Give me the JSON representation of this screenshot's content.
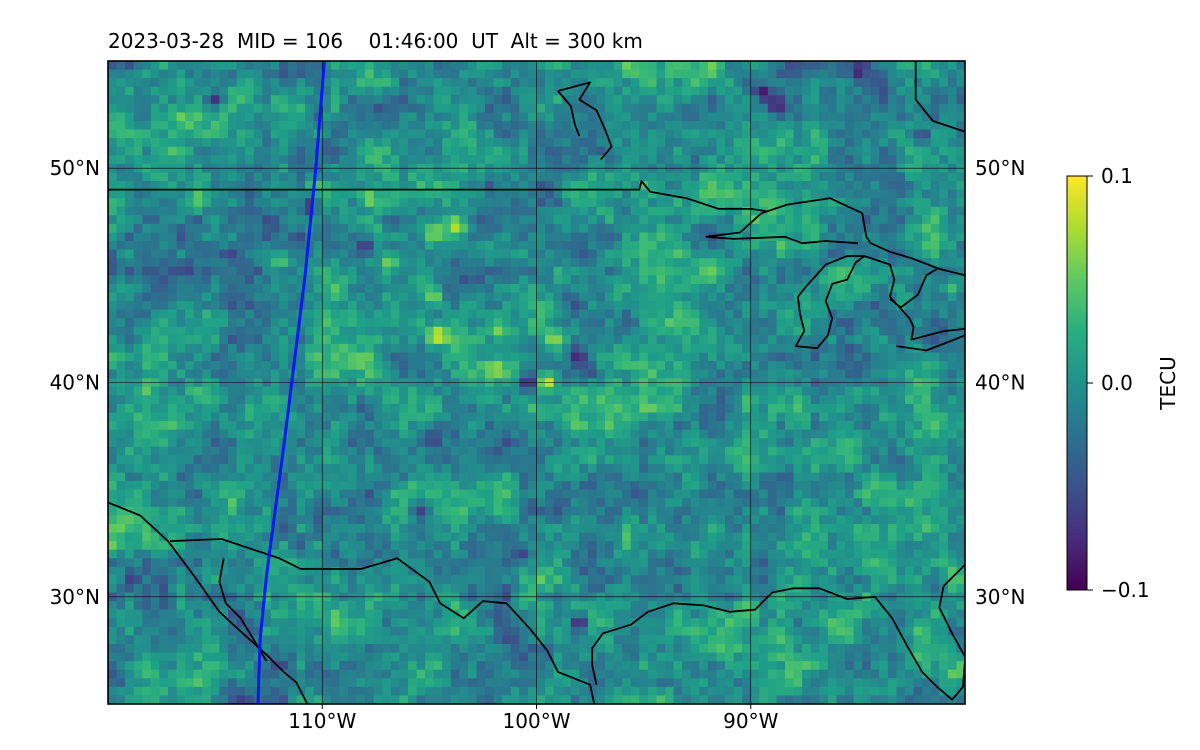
{
  "chart_data": {
    "type": "heatmap",
    "title": "2023-03-28  MID = 106    01:46:00  UT  Alt = 300 km",
    "projection": "equirectangular",
    "lon_range": [
      -120,
      -80
    ],
    "lat_range": [
      25,
      55
    ],
    "xticks": [
      {
        "value": -110,
        "label": "110°W"
      },
      {
        "value": -100,
        "label": "100°W"
      },
      {
        "value": -90,
        "label": "90°W"
      }
    ],
    "yticks": [
      {
        "value": 50,
        "label": "50°N"
      },
      {
        "value": 40,
        "label": "40°N"
      },
      {
        "value": 30,
        "label": "30°N"
      }
    ],
    "grid": true,
    "colormap": "viridis",
    "colorbar": {
      "label": "TECU",
      "vmin": -0.1,
      "vmax": 0.1,
      "ticks": [
        {
          "value": 0.1,
          "label": "0.1"
        },
        {
          "value": 0.0,
          "label": "0.0"
        },
        {
          "value": -0.1,
          "label": "−0.1"
        }
      ]
    },
    "colors": {
      "track": "#0a19f0",
      "coastline": "#000000",
      "grid": "#000000"
    },
    "satellite_track": {
      "lon": [
        -113.0,
        -112.9,
        -112.6,
        -112.2,
        -111.8,
        -111.3,
        -110.8,
        -110.3,
        -109.9
      ],
      "lat": [
        25.0,
        28.0,
        31.0,
        34.0,
        37.0,
        41.0,
        45.0,
        50.0,
        55.0
      ]
    },
    "hotspots": [
      {
        "lon": -99.6,
        "lat": 40.0,
        "value": 0.1
      },
      {
        "lon": -99.2,
        "lat": 42.0,
        "value": 0.07
      },
      {
        "lon": -104.8,
        "lat": 47.0,
        "value": 0.07
      },
      {
        "lon": -107.8,
        "lat": 48.6,
        "value": 0.07
      },
      {
        "lon": -106.9,
        "lat": 45.6,
        "value": 0.06
      },
      {
        "lon": -103.8,
        "lat": 47.3,
        "value": 0.08
      },
      {
        "lon": -101.8,
        "lat": 42.4,
        "value": 0.06
      },
      {
        "lon": -104.8,
        "lat": 44.0,
        "value": 0.06
      },
      {
        "lon": -102.0,
        "lat": 40.6,
        "value": 0.07
      },
      {
        "lon": -104.6,
        "lat": 42.2,
        "value": 0.09
      },
      {
        "lon": -112.0,
        "lat": 45.6,
        "value": 0.05
      },
      {
        "lon": -89.0,
        "lat": 48.5,
        "value": 0.04
      },
      {
        "lon": -98.9,
        "lat": 45.0,
        "value": 0.04
      }
    ],
    "coldspots": [
      {
        "lon": -88.8,
        "lat": 53.0,
        "value": -0.1
      },
      {
        "lon": -89.5,
        "lat": 53.6,
        "value": -0.09
      },
      {
        "lon": -85.0,
        "lat": 54.5,
        "value": -0.08
      },
      {
        "lon": -110.6,
        "lat": 48.2,
        "value": -0.08
      },
      {
        "lon": -108.0,
        "lat": 46.3,
        "value": -0.08
      },
      {
        "lon": -100.4,
        "lat": 40.0,
        "value": -0.08
      },
      {
        "lon": -98.1,
        "lat": 41.2,
        "value": -0.08
      },
      {
        "lon": -98.0,
        "lat": 28.8,
        "value": -0.08
      },
      {
        "lon": -115.0,
        "lat": 53.2,
        "value": -0.07
      },
      {
        "lon": -104.8,
        "lat": 37.4,
        "value": -0.07
      },
      {
        "lon": -105.4,
        "lat": 34.0,
        "value": -0.06
      },
      {
        "lon": -100.7,
        "lat": 32.0,
        "value": -0.06
      },
      {
        "lon": -82.0,
        "lat": 51.5,
        "value": -0.06
      }
    ],
    "coastlines": [
      [
        [
          -120.0,
          34.4
        ],
        [
          -118.5,
          33.8
        ],
        [
          -117.2,
          32.6
        ],
        [
          -116.0,
          31.0
        ],
        [
          -114.8,
          29.3
        ],
        [
          -113.6,
          28.2
        ],
        [
          -112.6,
          27.3
        ],
        [
          -111.8,
          26.5
        ],
        [
          -111.2,
          26.0
        ],
        [
          -110.7,
          25.0
        ]
      ],
      [
        [
          -117.1,
          32.6
        ],
        [
          -114.7,
          32.7
        ],
        [
          -112.0,
          31.8
        ],
        [
          -111.0,
          31.3
        ],
        [
          -108.2,
          31.3
        ],
        [
          -106.5,
          31.8
        ],
        [
          -105.0,
          30.7
        ],
        [
          -104.5,
          29.7
        ],
        [
          -103.4,
          29.0
        ],
        [
          -102.5,
          29.8
        ],
        [
          -101.4,
          29.7
        ],
        [
          -100.3,
          28.5
        ],
        [
          -99.5,
          27.5
        ],
        [
          -99.0,
          26.5
        ],
        [
          -97.5,
          25.9
        ],
        [
          -97.3,
          25.0
        ]
      ],
      [
        [
          -97.2,
          25.9
        ],
        [
          -97.4,
          26.8
        ],
        [
          -97.4,
          27.6
        ],
        [
          -96.9,
          28.3
        ],
        [
          -95.6,
          28.7
        ],
        [
          -94.8,
          29.3
        ],
        [
          -93.6,
          29.7
        ],
        [
          -92.2,
          29.6
        ],
        [
          -91.0,
          29.3
        ],
        [
          -89.8,
          29.4
        ],
        [
          -89.0,
          30.2
        ],
        [
          -88.0,
          30.4
        ],
        [
          -86.8,
          30.4
        ],
        [
          -85.5,
          29.9
        ],
        [
          -84.2,
          30.0
        ],
        [
          -83.4,
          29.0
        ],
        [
          -82.7,
          27.7
        ],
        [
          -82.0,
          26.5
        ],
        [
          -81.3,
          25.8
        ],
        [
          -80.6,
          25.2
        ],
        [
          -80.1,
          25.8
        ],
        [
          -80.0,
          27.0
        ]
      ],
      [
        [
          -80.0,
          31.5
        ],
        [
          -80.5,
          31.0
        ],
        [
          -81.0,
          30.5
        ],
        [
          -81.2,
          29.5
        ],
        [
          -80.6,
          28.3
        ],
        [
          -80.0,
          27.2
        ]
      ],
      [
        [
          -114.6,
          31.8
        ],
        [
          -114.8,
          30.7
        ],
        [
          -114.5,
          29.7
        ],
        [
          -113.8,
          29.0
        ],
        [
          -113.2,
          28.0
        ],
        [
          -112.6,
          27.0
        ]
      ],
      [
        [
          -120.0,
          49.0
        ],
        [
          -110.0,
          49.0
        ],
        [
          -100.0,
          49.0
        ],
        [
          -95.2,
          49.0
        ],
        [
          -95.1,
          49.4
        ],
        [
          -94.7,
          48.9
        ],
        [
          -93.0,
          48.6
        ],
        [
          -91.5,
          48.1
        ],
        [
          -90.0,
          48.1
        ],
        [
          -89.3,
          48.0
        ]
      ],
      [
        [
          -92.1,
          46.8
        ],
        [
          -90.5,
          47.0
        ],
        [
          -89.5,
          47.9
        ],
        [
          -88.3,
          48.3
        ],
        [
          -86.3,
          48.6
        ],
        [
          -84.8,
          47.9
        ],
        [
          -84.6,
          46.8
        ],
        [
          -84.4,
          46.5
        ]
      ],
      [
        [
          -92.1,
          46.8
        ],
        [
          -90.8,
          46.7
        ],
        [
          -88.4,
          46.8
        ],
        [
          -87.6,
          46.5
        ],
        [
          -86.5,
          46.6
        ],
        [
          -85.0,
          46.5
        ]
      ],
      [
        [
          -84.4,
          46.5
        ],
        [
          -83.5,
          46.1
        ],
        [
          -82.5,
          45.8
        ],
        [
          -81.2,
          45.3
        ],
        [
          -80.0,
          45.0
        ]
      ],
      [
        [
          -87.9,
          41.7
        ],
        [
          -87.5,
          42.4
        ],
        [
          -87.7,
          43.2
        ],
        [
          -87.8,
          44.0
        ],
        [
          -87.4,
          44.5
        ],
        [
          -86.5,
          45.5
        ],
        [
          -85.5,
          45.9
        ],
        [
          -84.7,
          45.9
        ]
      ],
      [
        [
          -87.9,
          41.7
        ],
        [
          -86.9,
          41.6
        ],
        [
          -86.4,
          42.2
        ],
        [
          -86.2,
          43.0
        ],
        [
          -86.5,
          43.8
        ],
        [
          -86.2,
          44.6
        ],
        [
          -85.5,
          44.8
        ],
        [
          -85.1,
          45.6
        ],
        [
          -84.7,
          45.9
        ]
      ],
      [
        [
          -84.7,
          45.9
        ],
        [
          -83.5,
          45.5
        ],
        [
          -83.3,
          44.8
        ],
        [
          -83.5,
          44.0
        ],
        [
          -82.6,
          43.0
        ],
        [
          -82.4,
          42.6
        ],
        [
          -82.5,
          42.0
        ],
        [
          -81.0,
          42.4
        ],
        [
          -80.0,
          42.5
        ]
      ],
      [
        [
          -83.2,
          41.7
        ],
        [
          -81.8,
          41.5
        ],
        [
          -80.5,
          42.0
        ],
        [
          -80.0,
          42.2
        ]
      ],
      [
        [
          -83.5,
          43.9
        ],
        [
          -83.0,
          43.5
        ],
        [
          -82.2,
          44.1
        ],
        [
          -81.8,
          45.0
        ],
        [
          -81.3,
          45.3
        ]
      ],
      [
        [
          -99.0,
          53.6
        ],
        [
          -97.5,
          54.0
        ],
        [
          -98.0,
          53.2
        ],
        [
          -97.2,
          52.7
        ],
        [
          -96.8,
          51.8
        ],
        [
          -96.5,
          51.0
        ],
        [
          -97.0,
          50.4
        ]
      ],
      [
        [
          -99.0,
          53.6
        ],
        [
          -98.4,
          52.9
        ],
        [
          -98.2,
          52.0
        ],
        [
          -98.0,
          51.5
        ]
      ],
      [
        [
          -80.0,
          51.7
        ],
        [
          -81.5,
          52.2
        ],
        [
          -82.3,
          53.2
        ],
        [
          -82.3,
          55.0
        ]
      ]
    ]
  }
}
